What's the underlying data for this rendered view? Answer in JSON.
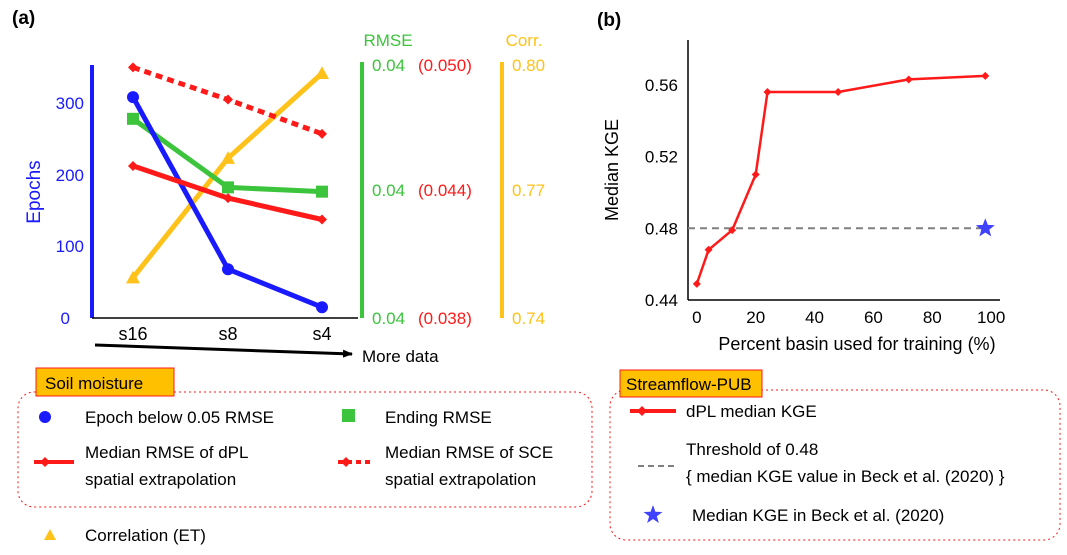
{
  "panel_a": {
    "label": "(a)",
    "axis_titles": {
      "epochs": "Epochs",
      "rmse": "RMSE",
      "corr": "Corr."
    },
    "epochs_ticks": [
      "0",
      "100",
      "200",
      "300"
    ],
    "rmse_ticks": [
      "0.04",
      "0.04",
      "0.04"
    ],
    "sce_ticks": [
      "(0.038)",
      "(0.044)",
      "(0.050)"
    ],
    "corr_ticks": [
      "0.74",
      "0.77",
      "0.80"
    ],
    "more_data": "More data",
    "legend_title": "Soil moisture",
    "legend": {
      "epoch": "Epoch below 0.05 RMSE",
      "ending": "Ending RMSE",
      "dpl_line1": "Median RMSE of dPL",
      "dpl_line2": "spatial extrapolation",
      "sce_line1": "Median RMSE of SCE",
      "sce_line2": "spatial extrapolation",
      "corr": "Correlation  (ET)"
    }
  },
  "panel_b": {
    "label": "(b)",
    "legend_title": "Streamflow-PUB",
    "legend": {
      "dpl": "dPL median KGE",
      "threshold_line1": "Threshold of 0.48",
      "threshold_line2": "{ median KGE value in Beck et al. (2020) }",
      "beck": "Median KGE in Beck et al. (2020)"
    }
  },
  "colors": {
    "blue": "#1a1aff",
    "green": "#3cc43c",
    "red": "#ff1a1a",
    "gold": "#ffc21a",
    "gray": "#808080",
    "legend_box": "#ffc000"
  },
  "chart_data": [
    {
      "type": "line",
      "categories": [
        "s16",
        "s8",
        "s4"
      ],
      "series": [
        {
          "name": "Epoch below 0.05 RMSE",
          "axis": "epochs",
          "values": [
            308,
            68,
            15
          ]
        },
        {
          "name": "Ending RMSE",
          "axis": "rmse",
          "values": [
            0.0473,
            0.0441,
            0.0439
          ]
        },
        {
          "name": "Median RMSE of dPL spatial extrapolation",
          "axis": "rmse",
          "values": [
            0.0451,
            0.0436,
            0.0426
          ]
        },
        {
          "name": "Median RMSE of SCE spatial extrapolation",
          "axis": "rmse",
          "values": [
            0.0497,
            0.0482,
            0.0466
          ]
        },
        {
          "name": "Correlation  (ET)",
          "axis": "corr",
          "values": [
            0.7494,
            0.7773,
            0.7971
          ]
        }
      ],
      "epochs_axis": {
        "ylim": [
          0,
          350
        ],
        "ticks": [
          0,
          100,
          200,
          300
        ]
      },
      "rmse_axis": {
        "ylim": [
          0.038,
          0.05
        ]
      },
      "corr_axis": {
        "ylim": [
          0.74,
          0.8
        ]
      },
      "xlabel": "",
      "ylabel": "Epochs"
    },
    {
      "type": "line",
      "x": [
        0,
        4,
        12,
        20,
        24,
        48,
        72,
        98
      ],
      "xlabel": "Percent basin used for training (%)",
      "ylabel": "Median KGE",
      "xlim": [
        -3,
        103
      ],
      "ylim": [
        0.44,
        0.585
      ],
      "xticks": [
        0,
        20,
        40,
        60,
        80,
        100
      ],
      "yticks": [
        0.44,
        0.48,
        0.52,
        0.56
      ],
      "series": [
        {
          "name": "dPL median KGE",
          "values": [
            0.449,
            0.468,
            0.479,
            0.51,
            0.556,
            0.556,
            0.563,
            0.565
          ]
        }
      ],
      "threshold": 0.48,
      "reference_point": {
        "x": 98,
        "y": 0.48
      }
    }
  ]
}
